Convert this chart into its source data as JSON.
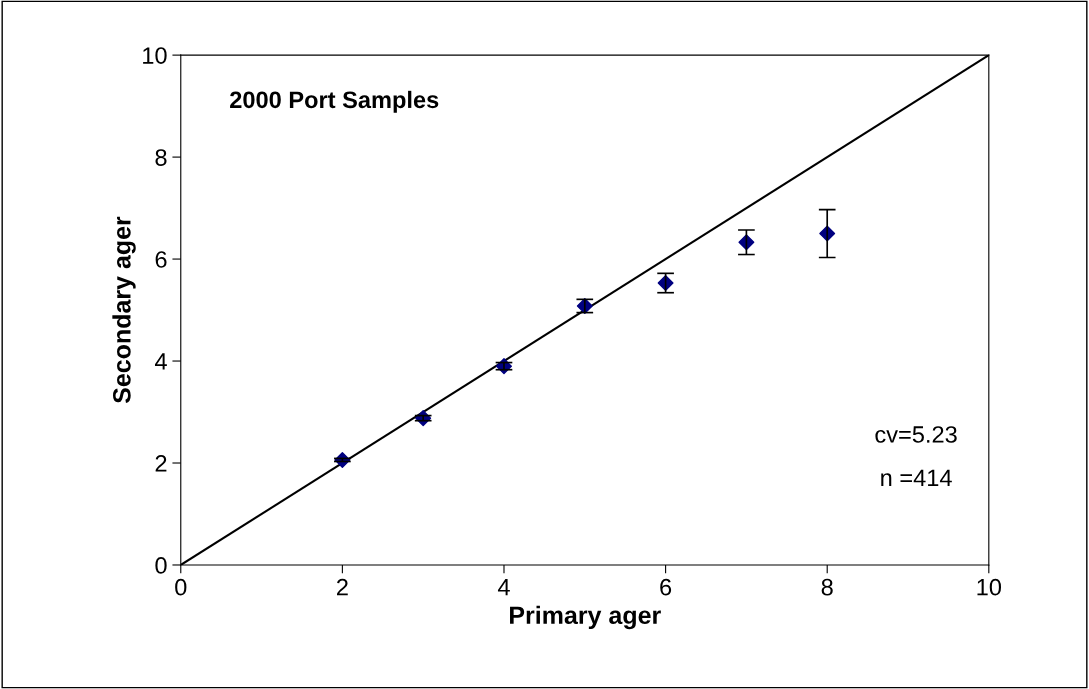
{
  "chart_data": {
    "type": "scatter",
    "xlabel": "Primary ager",
    "ylabel": "Secondary ager",
    "annotations": [
      "2000 Port Samples",
      "cv=5.23",
      "n =414"
    ],
    "xlim": [
      0,
      10
    ],
    "ylim": [
      0,
      10
    ],
    "xticks": [
      0,
      2,
      4,
      6,
      8,
      10
    ],
    "yticks": [
      0,
      2,
      4,
      6,
      8,
      10
    ],
    "grid": false,
    "legend": false,
    "marker": "diamond",
    "series": [
      {
        "color": "#000080",
        "x": [
          2,
          3,
          4,
          5,
          6,
          7,
          8
        ],
        "values": [
          2.06,
          2.88,
          3.9,
          5.08,
          5.53,
          6.33,
          6.5
        ],
        "errors": [
          0.03,
          0.05,
          0.07,
          0.13,
          0.19,
          0.24,
          0.47
        ]
      },
      {
        "type": "line",
        "color": "#000000",
        "x": [
          0,
          10
        ],
        "values": [
          0,
          10
        ],
        "marker": "none",
        "line_style": "solid"
      }
    ]
  }
}
